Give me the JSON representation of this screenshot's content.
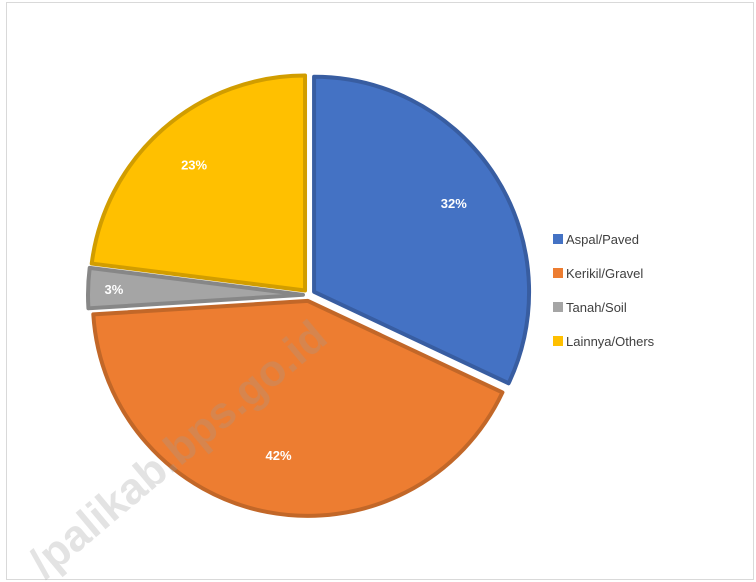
{
  "chart_data": {
    "type": "pie",
    "title": "",
    "categories": [
      "Aspal/Paved",
      "Kerikil/Gravel",
      "Tanah/Soil",
      "Lainnya/Others"
    ],
    "values": [
      32,
      42,
      3,
      23
    ],
    "value_labels": [
      "32%",
      "42%",
      "3%",
      "23%"
    ],
    "colors": [
      "#4472C4",
      "#ED7D31",
      "#A5A5A5",
      "#FFC000"
    ],
    "legend": {
      "position": "right"
    }
  },
  "watermark": {
    "text": "kapuashulukab.bps.go.id",
    "visible_text": "/palikab.bps.go.id"
  }
}
